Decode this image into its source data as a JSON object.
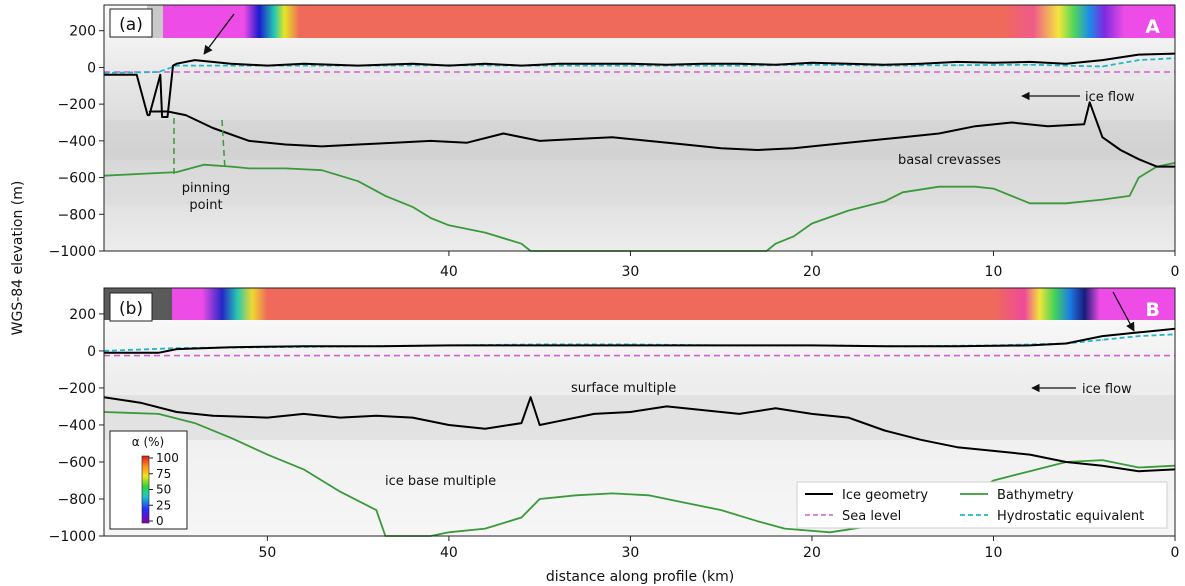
{
  "figure": {
    "ylabel": "WGS-84 elevation (m)",
    "xlabel": "distance along profile (km)",
    "colorbar": {
      "title": "α (%)",
      "ticks": [
        "100",
        "75",
        "50",
        "25",
        "0"
      ]
    },
    "legend": {
      "ice": "Ice geometry",
      "sea": "Sea level",
      "bathy": "Bathymetry",
      "hydro": "Hydrostatic equivalent"
    },
    "colors": {
      "ice": "#000000",
      "sea": "#d060d0",
      "bathy": "#3a9a3a",
      "hydro": "#1fb8c6",
      "alpha_high": "#f0625e",
      "alpha_low": "#e050e0"
    }
  },
  "panels": [
    {
      "label": "(a)",
      "corner": "A",
      "annotations": {
        "iceflow": "ice flow",
        "crevasses": "basal crevasses",
        "pinning1": "pinning",
        "pinning2": "point"
      }
    },
    {
      "label": "(b)",
      "corner": "B",
      "annotations": {
        "iceflow": "ice flow",
        "multiple": "surface multiple",
        "basemult": "ice base multiple"
      }
    }
  ],
  "chart_data": [
    {
      "type": "line",
      "panel": "(a)",
      "xlabel": "distance along profile (km)",
      "ylabel": "WGS-84 elevation (m)",
      "xlim": [
        59,
        0
      ],
      "ylim": [
        -1000,
        340
      ],
      "xticks": [
        40,
        30,
        20,
        10,
        0
      ],
      "yticks": [
        200,
        0,
        -200,
        -400,
        -600,
        -800,
        -1000
      ],
      "sea_level": -25,
      "series": [
        {
          "name": "Ice geometry",
          "x": [
            59,
            57.5,
            57.2,
            56.6,
            56.5,
            55.9,
            55.8,
            55.5,
            55.2,
            55,
            54,
            52,
            50,
            48,
            45,
            42,
            40,
            38,
            36,
            35,
            34,
            32,
            30,
            28,
            26,
            24,
            22,
            20,
            18,
            16,
            14,
            12,
            10,
            8,
            6,
            4,
            2,
            0
          ],
          "y": [
            -40,
            -40,
            -40,
            -260,
            -260,
            -40,
            -270,
            -270,
            10,
            20,
            40,
            20,
            10,
            20,
            10,
            20,
            10,
            20,
            10,
            15,
            20,
            20,
            20,
            15,
            20,
            20,
            15,
            25,
            20,
            15,
            20,
            30,
            25,
            30,
            20,
            40,
            70,
            75
          ]
        },
        {
          "name": "Hydrostatic equivalent",
          "x": [
            59,
            56,
            55,
            52,
            48,
            44,
            40,
            36,
            32,
            28,
            24,
            20,
            16,
            12,
            8,
            6,
            4,
            2,
            0
          ],
          "y": [
            -30,
            -25,
            10,
            10,
            10,
            10,
            12,
            10,
            10,
            10,
            10,
            15,
            10,
            12,
            15,
            10,
            5,
            40,
            50
          ]
        },
        {
          "name": "Bathymetry",
          "x": [
            59,
            57,
            55,
            53.5,
            52,
            51,
            49,
            47,
            45,
            43.5,
            42,
            41,
            40,
            38,
            36,
            35.5,
            22.5,
            22,
            21,
            20,
            18,
            16,
            15,
            13,
            11,
            10,
            8,
            6,
            4,
            2.5,
            2,
            1,
            0
          ],
          "y": [
            -590,
            -580,
            -570,
            -530,
            -540,
            -550,
            -550,
            -560,
            -620,
            -700,
            -760,
            -820,
            -860,
            -900,
            -960,
            -1000,
            -1000,
            -960,
            -920,
            -850,
            -780,
            -730,
            -680,
            -650,
            -650,
            -660,
            -740,
            -740,
            -720,
            -700,
            -600,
            -540,
            -520
          ]
        },
        {
          "name": "Ice base",
          "x": [
            56.5,
            55.5,
            54.5,
            53,
            51,
            49,
            47,
            45,
            43,
            41,
            39,
            37,
            35,
            33,
            31,
            29,
            27,
            25,
            23,
            21,
            19,
            17,
            15,
            13,
            11,
            9,
            7,
            5,
            4.7,
            4,
            3,
            2,
            1,
            0
          ],
          "y": [
            -240,
            -240,
            -260,
            -330,
            -400,
            -420,
            -430,
            -420,
            -410,
            -400,
            -410,
            -360,
            -400,
            -390,
            -380,
            -400,
            -420,
            -440,
            -450,
            -440,
            -420,
            -400,
            -380,
            -360,
            -320,
            -300,
            -320,
            -310,
            -190,
            -380,
            -450,
            -500,
            -540,
            -540
          ]
        }
      ]
    },
    {
      "type": "line",
      "panel": "(b)",
      "xlabel": "distance along profile (km)",
      "ylabel": "WGS-84 elevation (m)",
      "xlim": [
        59,
        0
      ],
      "ylim": [
        -1000,
        340
      ],
      "xticks": [
        50,
        40,
        30,
        20,
        10,
        0
      ],
      "yticks": [
        200,
        0,
        -200,
        -400,
        -600,
        -800,
        -1000
      ],
      "sea_level": -25,
      "series": [
        {
          "name": "Ice geometry",
          "x": [
            59,
            56,
            55,
            52,
            48,
            44,
            40,
            36,
            32,
            28,
            24,
            20,
            16,
            12,
            8,
            6,
            4,
            3,
            2,
            1,
            0
          ],
          "y": [
            -10,
            -10,
            10,
            20,
            25,
            25,
            30,
            30,
            30,
            30,
            30,
            30,
            25,
            25,
            30,
            40,
            80,
            90,
            100,
            110,
            120
          ]
        },
        {
          "name": "Hydrostatic equivalent",
          "x": [
            59,
            55,
            50,
            45,
            40,
            35,
            30,
            25,
            20,
            15,
            10,
            6,
            4,
            2,
            0
          ],
          "y": [
            0,
            15,
            20,
            25,
            30,
            35,
            35,
            30,
            30,
            25,
            30,
            40,
            60,
            80,
            90
          ]
        },
        {
          "name": "Bathymetry",
          "x": [
            59,
            56,
            54,
            52,
            50,
            48,
            46,
            44,
            43.5,
            41,
            40,
            38,
            36,
            35,
            33,
            31,
            29,
            27,
            25,
            23,
            21.5,
            19,
            17,
            15,
            13,
            11,
            10,
            8,
            6,
            4,
            2,
            0
          ],
          "y": [
            -330,
            -340,
            -390,
            -470,
            -560,
            -640,
            -760,
            -860,
            -1000,
            -1000,
            -980,
            -960,
            -900,
            -800,
            -780,
            -770,
            -780,
            -820,
            -860,
            -920,
            -960,
            -980,
            -950,
            -880,
            -800,
            -760,
            -700,
            -650,
            -600,
            -590,
            -630,
            -620
          ]
        },
        {
          "name": "Ice base",
          "x": [
            59,
            57,
            55,
            53,
            50,
            48,
            46,
            44,
            42,
            40,
            38,
            36,
            35.5,
            35,
            34,
            32,
            30,
            28,
            26,
            24,
            22,
            20,
            18,
            16,
            14,
            12,
            10,
            8,
            6,
            4,
            2,
            0
          ],
          "y": [
            -250,
            -280,
            -330,
            -350,
            -360,
            -340,
            -360,
            -350,
            -360,
            -400,
            -420,
            -390,
            -250,
            -400,
            -380,
            -340,
            -330,
            -300,
            -320,
            -340,
            -310,
            -340,
            -360,
            -430,
            -480,
            -520,
            -540,
            -560,
            -600,
            -620,
            -650,
            -640
          ]
        }
      ]
    }
  ]
}
